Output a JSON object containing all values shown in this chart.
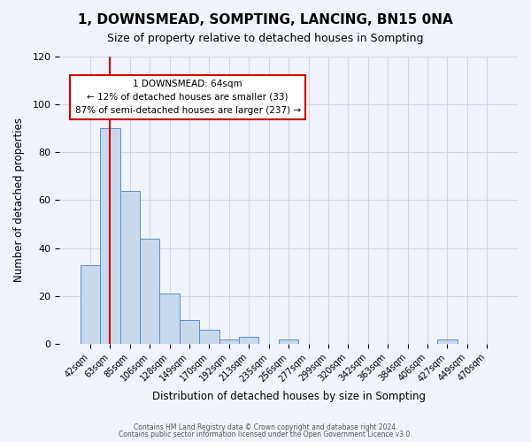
{
  "title": "1, DOWNSMEAD, SOMPTING, LANCING, BN15 0NA",
  "subtitle": "Size of property relative to detached houses in Sompting",
  "xlabel": "Distribution of detached houses by size in Sompting",
  "ylabel": "Number of detached properties",
  "bar_color": "#c8d9ed",
  "bar_edge_color": "#5a8fc0",
  "background_color": "#f0f4fa",
  "grid_color": "#d0d8e8",
  "bin_labels": [
    "42sqm",
    "63sqm",
    "85sqm",
    "106sqm",
    "128sqm",
    "149sqm",
    "170sqm",
    "192sqm",
    "213sqm",
    "235sqm",
    "256sqm",
    "277sqm",
    "299sqm",
    "320sqm",
    "342sqm",
    "363sqm",
    "384sqm",
    "406sqm",
    "427sqm",
    "449sqm",
    "470sqm"
  ],
  "bar_heights": [
    33,
    90,
    64,
    44,
    21,
    10,
    6,
    2,
    3,
    0,
    2,
    0,
    0,
    0,
    0,
    0,
    0,
    0,
    2,
    0,
    0
  ],
  "ylim": [
    0,
    120
  ],
  "yticks": [
    0,
    20,
    40,
    60,
    80,
    100,
    120
  ],
  "marker_x_label": "63sqm",
  "marker_value": 64,
  "annotation_title": "1 DOWNSMEAD: 64sqm",
  "annotation_line1": "← 12% of detached houses are smaller (33)",
  "annotation_line2": "87% of semi-detached houses are larger (237) →",
  "annotation_box_color": "#ffffff",
  "annotation_box_edge": "#cc0000",
  "vline_color": "#cc0000",
  "footer1": "Contains HM Land Registry data © Crown copyright and database right 2024.",
  "footer2": "Contains public sector information licensed under the Open Government Licence v3.0."
}
